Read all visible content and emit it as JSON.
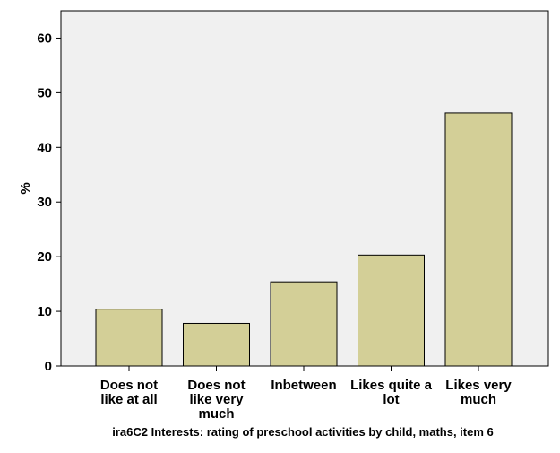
{
  "chart_data": {
    "type": "bar",
    "categories": [
      [
        "Does not",
        "like at all"
      ],
      [
        "Does not",
        "like very",
        "much"
      ],
      [
        "Inbetween"
      ],
      [
        "Likes quite a",
        "lot"
      ],
      [
        "Likes very",
        "much"
      ]
    ],
    "values": [
      10.4,
      7.8,
      15.4,
      20.3,
      46.3
    ],
    "title": "",
    "xlabel": "ira6C2 Interests: rating of preschool activities by child, maths, item 6",
    "ylabel": "%",
    "ylim": [
      0,
      65
    ],
    "yticks": [
      0,
      10,
      20,
      30,
      40,
      50,
      60
    ],
    "grid": false,
    "legend": "none",
    "colors": {
      "bar_fill": "#d3cf97",
      "bar_stroke": "#000000",
      "plot_background": "#f0f0f0",
      "axis": "#000000"
    }
  }
}
